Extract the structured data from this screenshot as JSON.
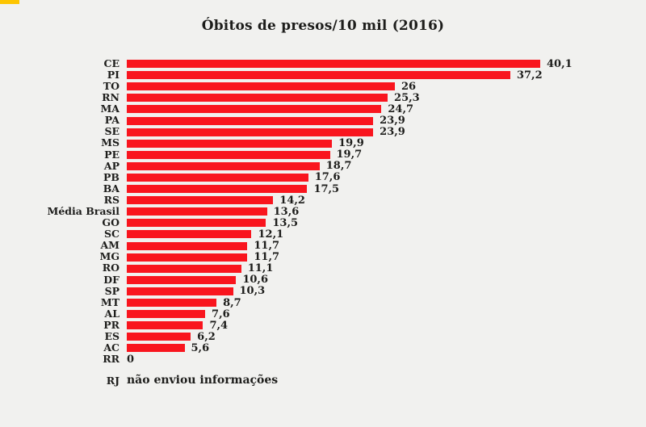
{
  "page": {
    "background_color": "#f1f1ef",
    "accent_mark_color": "#fdc500",
    "text_color": "#1d1d1b"
  },
  "title": "Óbitos de presos/10 mil (2016)",
  "chart_data": {
    "type": "bar",
    "orientation": "horizontal",
    "title": "Óbitos de presos/10 mil (2016)",
    "categories": [
      "CE",
      "PI",
      "TO",
      "RN",
      "MA",
      "PA",
      "SE",
      "MS",
      "PE",
      "AP",
      "PB",
      "BA",
      "RS",
      "Média Brasil",
      "GO",
      "SC",
      "AM",
      "MG",
      "RO",
      "DF",
      "SP",
      "MT",
      "AL",
      "PR",
      "ES",
      "AC",
      "RR"
    ],
    "values": [
      40.1,
      37.2,
      26,
      25.3,
      24.7,
      23.9,
      23.9,
      19.9,
      19.7,
      18.7,
      17.6,
      17.5,
      14.2,
      13.6,
      13.5,
      12.1,
      11.7,
      11.7,
      11.1,
      10.6,
      10.3,
      8.7,
      7.6,
      7.4,
      6.2,
      5.6,
      0
    ],
    "value_labels": [
      "40,1",
      "37,2",
      "26",
      "25,3",
      "24,7",
      "23,9",
      "23,9",
      "19,9",
      "19,7",
      "18,7",
      "17,6",
      "17,5",
      "14,2",
      "13,6",
      "13,5",
      "12,1",
      "11,7",
      "11,7",
      "11,1",
      "10,6",
      "10,3",
      "8,7",
      "7,6",
      "7,4",
      "6,2",
      "5,6",
      "0"
    ],
    "xlim": [
      0,
      40.1
    ],
    "bar_color": "#f9151e",
    "grid": false,
    "legend": false,
    "footnote": {
      "label": "RJ",
      "text": "não enviou informações"
    }
  }
}
